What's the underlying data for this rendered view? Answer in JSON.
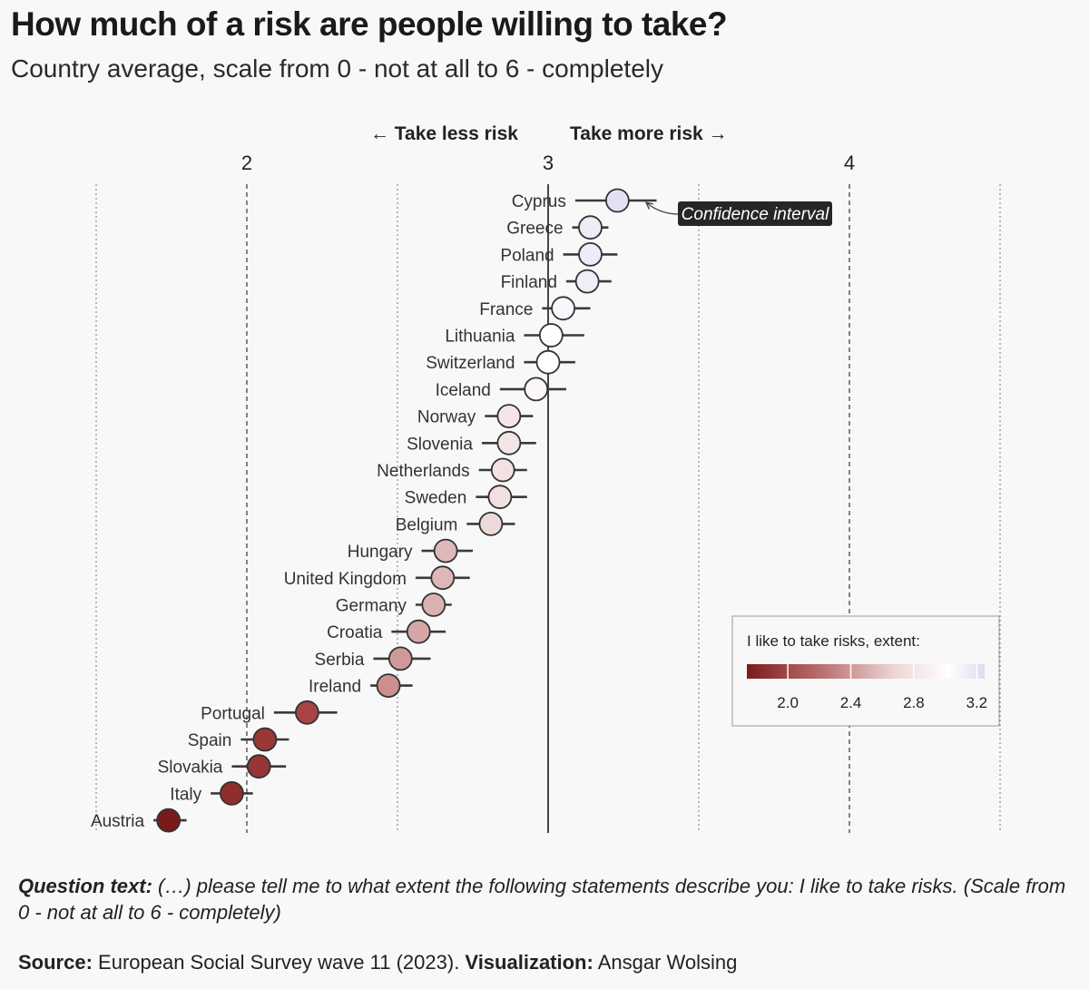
{
  "title": "How much of a risk are people willing to take?",
  "subtitle": "Country average, scale from 0 - not at all to 6 - completely",
  "direction_labels": {
    "less": "← Take less risk",
    "more": "Take more risk →"
  },
  "annotation": "Confidence interval",
  "legend": {
    "title": "I like to take risks, extent:",
    "ticks": [
      "2.0",
      "2.4",
      "2.8",
      "3.2"
    ],
    "colors": {
      "low": "#7b1a1a",
      "mid": "#ffffff",
      "high": "#dcdcf2"
    }
  },
  "chart_data": {
    "type": "dot-plot with confidence intervals",
    "x_axis": {
      "ticks": [
        2,
        3,
        4
      ],
      "range": [
        1.5,
        5.0
      ]
    },
    "center_value": 3,
    "points": [
      {
        "country": "Cyprus",
        "value": 3.23,
        "lo": 3.09,
        "hi": 3.36
      },
      {
        "country": "Greece",
        "value": 3.14,
        "lo": 3.08,
        "hi": 3.2
      },
      {
        "country": "Poland",
        "value": 3.14,
        "lo": 3.05,
        "hi": 3.23
      },
      {
        "country": "Finland",
        "value": 3.13,
        "lo": 3.06,
        "hi": 3.21
      },
      {
        "country": "France",
        "value": 3.05,
        "lo": 2.98,
        "hi": 3.14
      },
      {
        "country": "Lithuania",
        "value": 3.01,
        "lo": 2.92,
        "hi": 3.12
      },
      {
        "country": "Switzerland",
        "value": 3.0,
        "lo": 2.92,
        "hi": 3.09
      },
      {
        "country": "Iceland",
        "value": 2.96,
        "lo": 2.84,
        "hi": 3.06
      },
      {
        "country": "Norway",
        "value": 2.87,
        "lo": 2.79,
        "hi": 2.95
      },
      {
        "country": "Slovenia",
        "value": 2.87,
        "lo": 2.78,
        "hi": 2.96
      },
      {
        "country": "Netherlands",
        "value": 2.85,
        "lo": 2.77,
        "hi": 2.93
      },
      {
        "country": "Sweden",
        "value": 2.84,
        "lo": 2.76,
        "hi": 2.93
      },
      {
        "country": "Belgium",
        "value": 2.81,
        "lo": 2.73,
        "hi": 2.89
      },
      {
        "country": "Hungary",
        "value": 2.66,
        "lo": 2.58,
        "hi": 2.75
      },
      {
        "country": "United Kingdom",
        "value": 2.65,
        "lo": 2.56,
        "hi": 2.74
      },
      {
        "country": "Germany",
        "value": 2.62,
        "lo": 2.56,
        "hi": 2.68
      },
      {
        "country": "Croatia",
        "value": 2.57,
        "lo": 2.48,
        "hi": 2.66
      },
      {
        "country": "Serbia",
        "value": 2.51,
        "lo": 2.42,
        "hi": 2.61
      },
      {
        "country": "Ireland",
        "value": 2.47,
        "lo": 2.41,
        "hi": 2.55
      },
      {
        "country": "Portugal",
        "value": 2.2,
        "lo": 2.09,
        "hi": 2.3
      },
      {
        "country": "Spain",
        "value": 2.06,
        "lo": 1.98,
        "hi": 2.14
      },
      {
        "country": "Slovakia",
        "value": 2.04,
        "lo": 1.95,
        "hi": 2.13
      },
      {
        "country": "Italy",
        "value": 1.95,
        "lo": 1.88,
        "hi": 2.02
      },
      {
        "country": "Austria",
        "value": 1.74,
        "lo": 1.69,
        "hi": 1.8
      }
    ]
  },
  "footer": {
    "question_label": "Question text:",
    "question_text": " (…) please tell me to what extent the following statements describe you: I like to take risks. (Scale from 0 - not at all to 6 - completely)",
    "source_label": "Source:",
    "source_text": " European Social Survey wave 11 (2023). ",
    "viz_label": "Visualization:",
    "viz_text": " Ansgar Wolsing"
  }
}
